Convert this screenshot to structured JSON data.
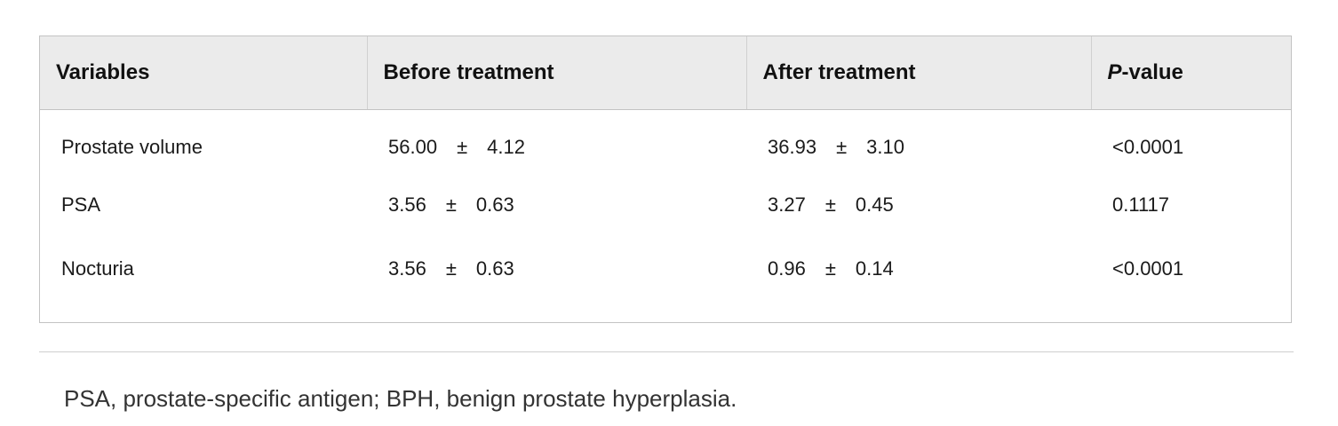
{
  "table": {
    "headers": {
      "variables": "Variables",
      "before": "Before treatment",
      "after": "After treatment",
      "p_value_prefix": "P",
      "p_value_suffix": "-value"
    },
    "pm_symbol": "±",
    "rows": [
      {
        "variable": "Prostate volume",
        "before_mean": "56.00",
        "before_sd": "4.12",
        "after_mean": "36.93",
        "after_sd": "3.10",
        "p_value": "<0.0001"
      },
      {
        "variable": "PSA",
        "before_mean": "3.56",
        "before_sd": "0.63",
        "after_mean": "3.27",
        "after_sd": "0.45",
        "p_value": "0.1117"
      },
      {
        "variable": "Nocturia",
        "before_mean": "3.56",
        "before_sd": "0.63",
        "after_mean": "0.96",
        "after_sd": "0.14",
        "p_value": "<0.0001"
      }
    ]
  },
  "footnote": "PSA, prostate-specific antigen; BPH, benign prostate hyperplasia."
}
